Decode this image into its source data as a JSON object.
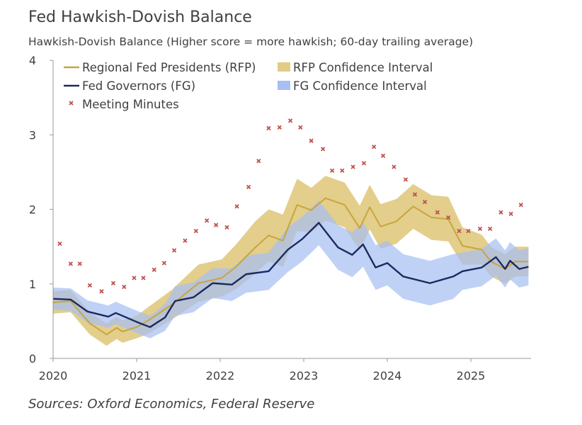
{
  "chart_data": {
    "type": "line",
    "title": "Fed Hawkish-Dovish Balance",
    "subtitle": "Hawkish-Dovish Balance (Higher score = more hawkish; 60-day trailing average)",
    "source": "Sources: Oxford Economics, Federal Reserve",
    "xlim": [
      2020,
      2025.7
    ],
    "ylim": [
      0,
      4
    ],
    "x_ticks": [
      "2020",
      "2021",
      "2022",
      "2023",
      "2024",
      "2025"
    ],
    "y_ticks": [
      "0",
      "1",
      "2",
      "3",
      "4"
    ],
    "grid": false,
    "legend_position": "top-left",
    "series": [
      {
        "name": "Regional Fed Presidents (RFP)",
        "kind": "line",
        "color": "#c8a53c",
        "x": [
          2020.0,
          2020.21,
          2020.44,
          2020.64,
          2020.76,
          2020.83,
          2021.0,
          2021.14,
          2021.42,
          2021.74,
          2022.02,
          2022.19,
          2022.42,
          2022.58,
          2022.75,
          2022.92,
          2023.09,
          2023.26,
          2023.49,
          2023.67,
          2023.79,
          2023.92,
          2024.11,
          2024.31,
          2024.53,
          2024.73,
          2024.9,
          2025.13,
          2025.24,
          2025.41,
          2025.53,
          2025.69
        ],
        "y": [
          0.75,
          0.77,
          0.47,
          0.32,
          0.41,
          0.36,
          0.42,
          0.51,
          0.72,
          1.01,
          1.08,
          1.23,
          1.49,
          1.65,
          1.58,
          2.06,
          1.99,
          2.15,
          2.06,
          1.75,
          2.03,
          1.77,
          1.84,
          2.04,
          1.89,
          1.87,
          1.51,
          1.46,
          1.3,
          1.2,
          1.3,
          1.3
        ]
      },
      {
        "name": "RFP Confidence Interval",
        "kind": "band",
        "color": "#e2cb85",
        "x": [
          2020.0,
          2020.21,
          2020.44,
          2020.64,
          2020.76,
          2020.83,
          2021.0,
          2021.14,
          2021.42,
          2021.74,
          2022.02,
          2022.19,
          2022.42,
          2022.58,
          2022.75,
          2022.92,
          2023.09,
          2023.26,
          2023.49,
          2023.67,
          2023.79,
          2023.92,
          2024.11,
          2024.31,
          2024.53,
          2024.73,
          2024.9,
          2025.13,
          2025.24,
          2025.41,
          2025.53,
          2025.69
        ],
        "lower": [
          0.6,
          0.62,
          0.32,
          0.17,
          0.26,
          0.21,
          0.27,
          0.33,
          0.52,
          0.76,
          0.83,
          0.93,
          1.14,
          1.3,
          1.23,
          1.71,
          1.69,
          1.85,
          1.76,
          1.45,
          1.73,
          1.47,
          1.54,
          1.74,
          1.59,
          1.57,
          1.26,
          1.26,
          1.1,
          1.0,
          1.1,
          1.1
        ],
        "upper": [
          0.9,
          0.92,
          0.62,
          0.47,
          0.56,
          0.51,
          0.57,
          0.69,
          0.92,
          1.26,
          1.33,
          1.53,
          1.84,
          2.0,
          1.93,
          2.41,
          2.29,
          2.45,
          2.36,
          2.05,
          2.33,
          2.07,
          2.14,
          2.34,
          2.19,
          2.17,
          1.76,
          1.66,
          1.5,
          1.4,
          1.5,
          1.5
        ]
      },
      {
        "name": "Fed Governors (FG)",
        "kind": "line",
        "color": "#1b2b5e",
        "x": [
          2020.0,
          2020.21,
          2020.41,
          2020.66,
          2020.75,
          2021.0,
          2021.16,
          2021.34,
          2021.46,
          2021.68,
          2021.91,
          2022.14,
          2022.31,
          2022.58,
          2022.81,
          2022.98,
          2023.18,
          2023.41,
          2023.58,
          2023.71,
          2023.86,
          2024.0,
          2024.19,
          2024.51,
          2024.79,
          2024.9,
          2025.13,
          2025.3,
          2025.41,
          2025.47,
          2025.58,
          2025.69
        ],
        "y": [
          0.8,
          0.79,
          0.63,
          0.56,
          0.61,
          0.49,
          0.42,
          0.55,
          0.77,
          0.82,
          1.01,
          0.99,
          1.13,
          1.17,
          1.46,
          1.6,
          1.82,
          1.49,
          1.39,
          1.53,
          1.22,
          1.28,
          1.1,
          1.01,
          1.1,
          1.17,
          1.22,
          1.36,
          1.2,
          1.31,
          1.2,
          1.23
        ]
      },
      {
        "name": "FG Confidence Interval",
        "kind": "band",
        "color": "#a7bff2",
        "x": [
          2020.0,
          2020.21,
          2020.41,
          2020.66,
          2020.75,
          2021.0,
          2021.16,
          2021.34,
          2021.46,
          2021.68,
          2021.91,
          2022.14,
          2022.31,
          2022.58,
          2022.81,
          2022.98,
          2023.18,
          2023.41,
          2023.58,
          2023.71,
          2023.86,
          2024.0,
          2024.19,
          2024.51,
          2024.79,
          2024.9,
          2025.13,
          2025.3,
          2025.41,
          2025.47,
          2025.58,
          2025.69
        ],
        "lower": [
          0.65,
          0.64,
          0.48,
          0.41,
          0.46,
          0.34,
          0.27,
          0.37,
          0.57,
          0.62,
          0.81,
          0.77,
          0.88,
          0.92,
          1.16,
          1.3,
          1.52,
          1.19,
          1.09,
          1.23,
          0.92,
          0.98,
          0.8,
          0.71,
          0.8,
          0.92,
          0.97,
          1.11,
          0.95,
          1.06,
          0.95,
          0.98
        ],
        "upper": [
          0.95,
          0.94,
          0.78,
          0.71,
          0.76,
          0.64,
          0.57,
          0.73,
          0.97,
          1.02,
          1.21,
          1.21,
          1.38,
          1.42,
          1.76,
          1.9,
          2.12,
          1.79,
          1.69,
          1.83,
          1.52,
          1.58,
          1.4,
          1.31,
          1.4,
          1.42,
          1.47,
          1.61,
          1.45,
          1.56,
          1.45,
          1.48
        ]
      },
      {
        "name": "Meeting Minutes",
        "kind": "scatter",
        "color": "#c0504d",
        "x": [
          2020.08,
          2020.21,
          2020.32,
          2020.44,
          2020.58,
          2020.72,
          2020.85,
          2020.97,
          2021.08,
          2021.21,
          2021.33,
          2021.45,
          2021.58,
          2021.71,
          2021.84,
          2021.95,
          2022.08,
          2022.2,
          2022.34,
          2022.46,
          2022.58,
          2022.71,
          2022.84,
          2022.96,
          2023.09,
          2023.23,
          2023.34,
          2023.46,
          2023.59,
          2023.72,
          2023.84,
          2023.95,
          2024.08,
          2024.22,
          2024.33,
          2024.45,
          2024.6,
          2024.73,
          2024.86,
          2024.97,
          2025.11,
          2025.23,
          2025.36,
          2025.48,
          2025.6
        ],
        "y": [
          1.54,
          1.27,
          1.27,
          0.98,
          0.9,
          1.01,
          0.96,
          1.08,
          1.08,
          1.19,
          1.28,
          1.45,
          1.58,
          1.71,
          1.85,
          1.79,
          1.76,
          2.04,
          2.3,
          2.65,
          3.09,
          3.1,
          3.19,
          3.1,
          2.92,
          2.81,
          2.52,
          2.52,
          2.57,
          2.62,
          2.84,
          2.72,
          2.57,
          2.4,
          2.2,
          2.1,
          1.96,
          1.89,
          1.71,
          1.71,
          1.74,
          1.74,
          1.96,
          1.94,
          2.06
        ]
      }
    ]
  }
}
